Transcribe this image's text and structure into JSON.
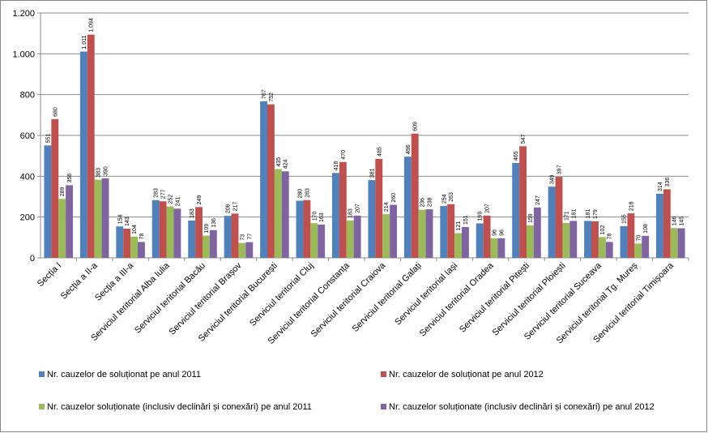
{
  "chart_data": {
    "type": "bar",
    "categories": [
      "Secția I",
      "Secția a II-a",
      "Secția a III-a",
      "Serviciul teritorial Alba Iulia",
      "Serviciul teritorial Bacău",
      "Serviciul teritorial Brașov",
      "Serviciul teritorial București",
      "Serviciul teritorial Cluj",
      "Serviciul teritorial  Constanța",
      "Serviciul teritorial Craiova",
      "Serviciul teritorial Galați",
      "Serviciul teritorial Iași",
      "Serviciul teritorial Oradea",
      "Serviciul teritorial Pitești",
      "Serviciul teritorial Ploiești",
      "Serviciul teritorial Suceava",
      "Serviciul teritorial Tg. Mureș",
      "Serviciul teritorial Timișoara"
    ],
    "series": [
      {
        "name": "Nr. cauzelor de soluționat pe anul 2011",
        "color": "#4f81bd",
        "values": [
          551,
          1011,
          154,
          283,
          183,
          206,
          767,
          280,
          416,
          381,
          496,
          254,
          169,
          465,
          349,
          181,
          155,
          314
        ],
        "value_labels": [
          "551",
          "1.011",
          "154",
          "283",
          "183",
          "206",
          "767",
          "280",
          "416",
          "381",
          "496",
          "254",
          "169",
          "465",
          "349",
          "181",
          "155",
          "314"
        ]
      },
      {
        "name": "Nr. cauzelor de soluționat pe anul 2012",
        "color": "#c0504d",
        "values": [
          680,
          1094,
          143,
          277,
          249,
          217,
          752,
          283,
          470,
          485,
          609,
          263,
          207,
          547,
          397,
          179,
          218,
          336
        ],
        "value_labels": [
          "680",
          "1.094",
          "143",
          "277",
          "249",
          "217",
          "752",
          "283",
          "470",
          "485",
          "609",
          "263",
          "207",
          "547",
          "397",
          "179",
          "218",
          "336"
        ]
      },
      {
        "name": "Nr. cauzelor soluționate (inclusiv declinări și conexări) pe anul 2011",
        "color": "#9bbb59",
        "values": [
          289,
          383,
          104,
          252,
          109,
          73,
          435,
          170,
          183,
          214,
          236,
          121,
          96,
          159,
          171,
          102,
          70,
          146
        ]
      },
      {
        "name": "Nr. cauzelor soluționate (inclusiv declinări și conexări) pe anul 2012",
        "color": "#8064a2",
        "values": [
          356,
          390,
          78,
          241,
          136,
          77,
          424,
          163,
          207,
          260,
          238,
          151,
          96,
          247,
          181,
          78,
          108,
          145
        ]
      }
    ],
    "ylim": [
      0,
      1200
    ],
    "yticks": [
      0,
      200,
      400,
      600,
      800,
      {
        "value": 1000,
        "label": "1.000"
      },
      {
        "value": 1200,
        "label": "1.200"
      }
    ],
    "grid": true
  }
}
